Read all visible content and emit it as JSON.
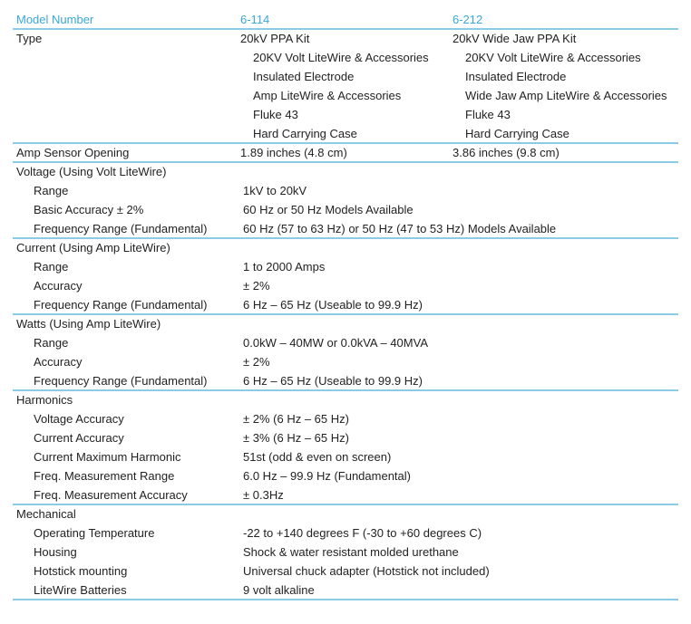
{
  "header": [
    "Model Number",
    "6-114",
    "6-212"
  ],
  "sections": [
    {
      "rows": [
        {
          "label": "Type",
          "values": [
            "20kV PPA Kit",
            "20kV Wide Jaw PPA Kit"
          ]
        },
        {
          "values": [
            "20KV Volt LiteWire & Accessories",
            "20KV Volt LiteWire & Accessories"
          ]
        },
        {
          "values": [
            "Insulated Electrode",
            "Insulated Electrode"
          ]
        },
        {
          "values": [
            "Amp LiteWire & Accessories",
            "Wide Jaw Amp LiteWire & Accessories"
          ]
        },
        {
          "values": [
            "Fluke 43",
            "Fluke 43"
          ]
        },
        {
          "values": [
            "Hard Carrying Case",
            "Hard Carrying Case"
          ]
        }
      ]
    },
    {
      "rows": [
        {
          "label": "Amp Sensor Opening",
          "values": [
            "1.89 inches (4.8 cm)",
            "3.86 inches (9.8 cm)"
          ]
        }
      ]
    },
    {
      "title": "Voltage (Using Volt LiteWire)",
      "rows": [
        {
          "label": "Range",
          "value": "1kV to 20kV"
        },
        {
          "label": "Basic Accuracy ± 2%",
          "value": "60 Hz or 50 Hz Models Available"
        },
        {
          "label": "Frequency Range (Fundamental)",
          "value": "60 Hz (57 to 63 Hz) or 50 Hz (47 to 53 Hz) Models Available"
        }
      ]
    },
    {
      "title": "Current (Using Amp LiteWire)",
      "rows": [
        {
          "label": "Range",
          "value": "1 to 2000 Amps"
        },
        {
          "label": "Accuracy",
          "value": "± 2%"
        },
        {
          "label": "Frequency Range (Fundamental)",
          "value": "6 Hz – 65 Hz (Useable to 99.9 Hz)"
        }
      ]
    },
    {
      "title": "Watts (Using Amp LiteWire)",
      "rows": [
        {
          "label": "Range",
          "value": "0.0kW – 40MW or 0.0kVA – 40MVA"
        },
        {
          "label": "Accuracy",
          "value": "± 2%"
        },
        {
          "label": "Frequency Range (Fundamental)",
          "value": "6 Hz – 65 Hz (Useable to 99.9 Hz)"
        }
      ]
    },
    {
      "title": "Harmonics",
      "rows": [
        {
          "label": "Voltage Accuracy",
          "value": "± 2% (6 Hz – 65 Hz)"
        },
        {
          "label": "Current Accuracy",
          "value": "± 3% (6 Hz – 65 Hz)"
        },
        {
          "label": "Current Maximum Harmonic",
          "value": "51st (odd & even on screen)"
        },
        {
          "label": "Freq. Measurement Range",
          "value": "6.0 Hz – 99.9 Hz (Fundamental)"
        },
        {
          "label": "Freq. Measurement Accuracy",
          "value": "± 0.3Hz"
        }
      ]
    },
    {
      "title": "Mechanical",
      "rows": [
        {
          "label": "Operating Temperature",
          "value": "-22 to +140 degrees F (-30 to +60 degrees C)"
        },
        {
          "label": "Housing",
          "value": "Shock & water resistant molded urethane"
        },
        {
          "label": "Hotstick mounting",
          "value": "Universal chuck adapter (Hotstick not included)"
        },
        {
          "label": "LiteWire Batteries",
          "value": "9 volt alkaline"
        }
      ]
    }
  ]
}
